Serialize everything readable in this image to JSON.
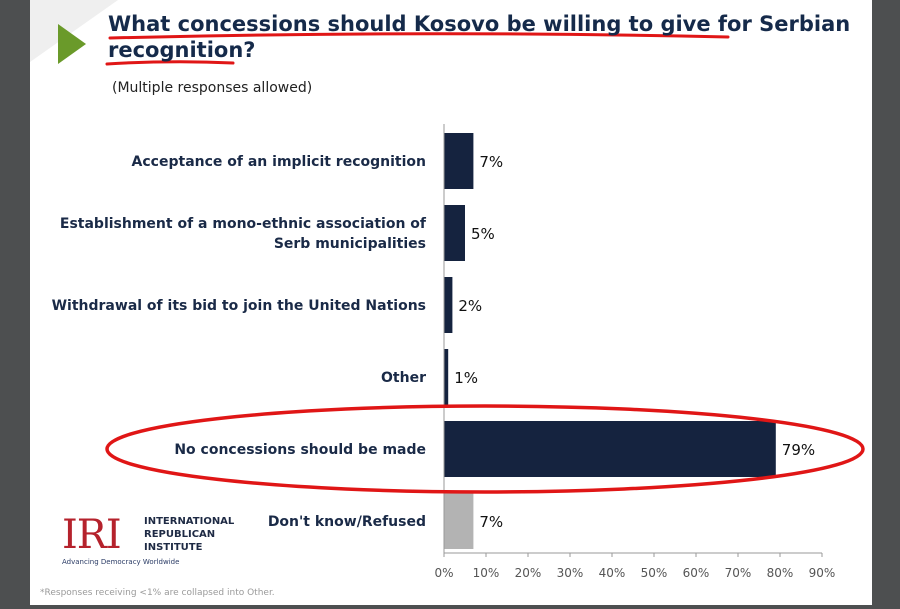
{
  "header": {
    "title_line1": "What concessions should Kosovo be willing to give for Serbian",
    "title_line2": "recognition?",
    "subtitle": "(Multiple responses allowed)"
  },
  "chart_data": {
    "type": "bar",
    "orientation": "horizontal",
    "categories": [
      [
        "Acceptance of an implicit recognition"
      ],
      [
        "Establishment of a mono-ethnic association of",
        "Serb municipalities"
      ],
      [
        "Withdrawal of its bid to join the United Nations"
      ],
      [
        "Other"
      ],
      [
        "No concessions should be made"
      ],
      [
        "Don't know/Refused"
      ]
    ],
    "values": [
      7,
      5,
      2,
      1,
      79,
      7
    ],
    "value_labels": [
      "7%",
      "5%",
      "2%",
      "1%",
      "79%",
      "7%"
    ],
    "bar_colors": [
      "#15233f",
      "#15233f",
      "#15233f",
      "#15233f",
      "#15233f",
      "#b3b3b3"
    ],
    "xlim": [
      0,
      90
    ],
    "ticks": [
      0,
      10,
      20,
      30,
      40,
      50,
      60,
      70,
      80,
      90
    ],
    "tick_labels": [
      "0%",
      "10%",
      "20%",
      "30%",
      "40%",
      "50%",
      "60%",
      "70%",
      "80%",
      "90%"
    ],
    "grid": false,
    "annotation": "red ellipse circling 'No concessions should be made'"
  },
  "logo": {
    "mark": "IRI",
    "name_lines": [
      "INTERNATIONAL",
      "REPUBLICAN",
      "INSTITUTE"
    ],
    "tagline": "Advancing Democracy Worldwide"
  },
  "footnote": "*Responses receiving <1% are collapsed into Other.",
  "colors": {
    "primary_bar": "#15233f",
    "secondary_bar": "#b3b3b3",
    "accent_arrow": "#6a9a2a",
    "annotation_red": "#e01616",
    "title": "#152a4a",
    "frame": "#4d4f50"
  }
}
